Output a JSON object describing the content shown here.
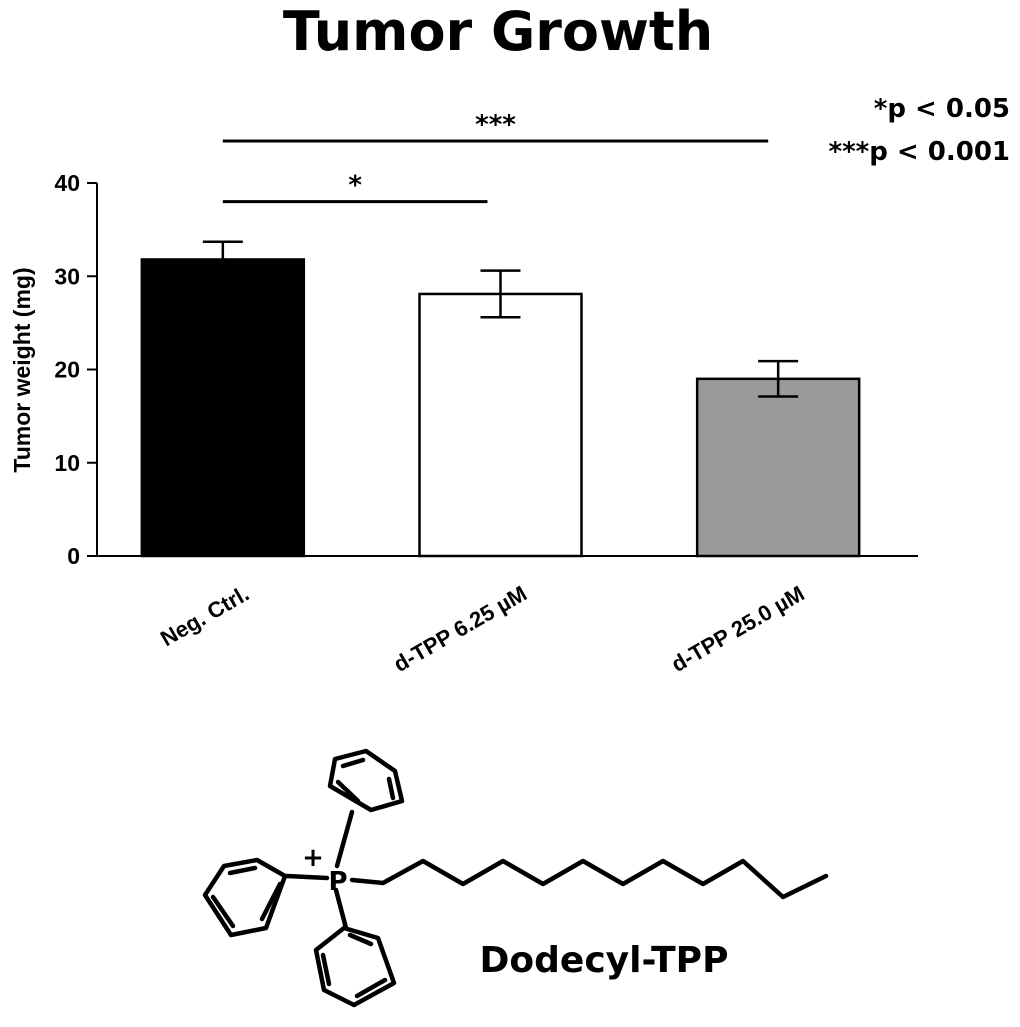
{
  "chart_data": {
    "type": "bar",
    "title": "Tumor Growth",
    "ylabel": "Tumor weight (mg)",
    "xlabel": "",
    "ylim": [
      0,
      40
    ],
    "yticks": [
      0,
      10,
      20,
      30,
      40
    ],
    "grid": false,
    "categories": [
      "Neg. Ctrl.",
      "d-TPP 6.25 µM",
      "d-TPP 25.0 µM"
    ],
    "values": [
      31.8,
      28.1,
      19.0
    ],
    "errors": [
      1.9,
      2.5,
      1.9
    ],
    "bar_colors": [
      "#000000",
      "#ffffff",
      "#9a9a9a"
    ],
    "significance": [
      {
        "from": 0,
        "to": 1,
        "level": 38,
        "label": "*"
      },
      {
        "from": 0,
        "to": 2,
        "level": 44.5,
        "label": "***"
      }
    ],
    "legend": [
      "*p < 0.05",
      "***p < 0.001"
    ]
  },
  "molecule": {
    "name": "Dodecyl-TPP",
    "atom": "P",
    "charge": "+"
  }
}
